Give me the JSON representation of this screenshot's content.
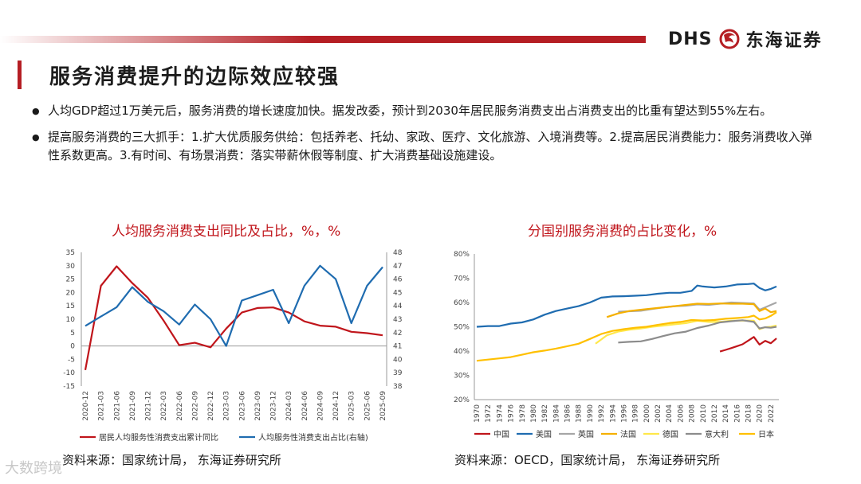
{
  "header": {
    "logo_text": "DHS",
    "company": "东海证券"
  },
  "title": "服务消费提升的边际效应较强",
  "bullets": [
    "人均GDP超过1万美元后，服务消费的增长速度加快。据发改委，预计到2030年居民服务消费支出占消费支出的比重有望达到55%左右。",
    "提高服务消费的三大抓手：1.扩大优质服务供给：包括养老、托幼、家政、医疗、文化旅游、入境消费等。2.提高居民消费能力：服务消费收入弹性系数更高。3.有时间、有场景消费：落实带薪休假等制度、扩大消费基础设施建设。"
  ],
  "sources": {
    "left": "资料来源：国家统计局， 东海证券研究所",
    "right": "资料来源：OECD，国家统计局， 东海证券研究所"
  },
  "watermark": "大数跨境",
  "colors": {
    "brand_red": "#b51e24",
    "title_red": "#c0151b"
  },
  "chart_data": [
    {
      "type": "line",
      "title": "人均服务消费支出同比及占比，%，%",
      "categories": [
        "2020-12",
        "2021-03",
        "2021-06",
        "2021-09",
        "2021-12",
        "2022-03",
        "2022-06",
        "2022-09",
        "2022-12",
        "2023-03",
        "2023-06",
        "2023-09",
        "2023-12",
        "2024-03",
        "2024-06",
        "2024-09",
        "2024-12",
        "2025-03",
        "2025-06",
        "2025-09"
      ],
      "left_axis": {
        "min": -15,
        "max": 35,
        "step": 5,
        "ticks": [
          "35",
          "30",
          "25",
          "20",
          "15",
          "10",
          "5",
          "0",
          "-5",
          "-10",
          "-15"
        ]
      },
      "right_axis": {
        "min": 38,
        "max": 48,
        "step": 1,
        "ticks": [
          "48",
          "47",
          "46",
          "45",
          "44",
          "43",
          "42",
          "41",
          "40",
          "39",
          "38"
        ]
      },
      "series": [
        {
          "name": "居民人均服务性消费支出累计同比",
          "axis": "left",
          "color": "#c0151b",
          "values": [
            -9,
            22.5,
            29.8,
            23.5,
            18,
            9.5,
            0.3,
            1.2,
            -0.5,
            6.5,
            12.5,
            14.2,
            14.4,
            12.5,
            9.2,
            7.6,
            7.2,
            5.3,
            4.8,
            4.0
          ]
        },
        {
          "name": "人均服务性消费支出占比(右轴)",
          "axis": "right",
          "color": "#1f6cb0",
          "values": [
            42.5,
            43.2,
            43.9,
            45.4,
            44.3,
            43.6,
            42.6,
            44.1,
            43.0,
            41.0,
            44.4,
            44.8,
            45.2,
            42.7,
            45.5,
            47.0,
            46.0,
            42.7,
            45.5,
            46.9
          ]
        }
      ]
    },
    {
      "type": "line",
      "title": "分国别服务消费的占比变化，%",
      "x_min": 1970,
      "x_max": 2023,
      "x_ticks": [
        "1970",
        "1972",
        "1974",
        "1976",
        "1978",
        "1980",
        "1982",
        "1984",
        "1986",
        "1988",
        "1990",
        "1992",
        "1994",
        "1996",
        "1998",
        "2000",
        "2002",
        "2004",
        "2006",
        "2008",
        "2010",
        "2012",
        "2014",
        "2016",
        "2018",
        "2020",
        "2022"
      ],
      "y_axis": {
        "min": 20,
        "max": 80,
        "step": 10,
        "ticks": [
          "80%",
          "70%",
          "60%",
          "50%",
          "40%",
          "30%",
          "20%"
        ]
      },
      "series": [
        {
          "name": "中国",
          "color": "#c0151b",
          "points": [
            [
              2013,
              39.8
            ],
            [
              2014,
              40.5
            ],
            [
              2015,
              41.2
            ],
            [
              2016,
              42.0
            ],
            [
              2017,
              42.8
            ],
            [
              2018,
              44.3
            ],
            [
              2019,
              45.8
            ],
            [
              2020,
              42.7
            ],
            [
              2021,
              44.2
            ],
            [
              2022,
              43.2
            ],
            [
              2023,
              45.2
            ]
          ]
        },
        {
          "name": "美国",
          "color": "#1f6cb0",
          "points": [
            [
              1970,
              50
            ],
            [
              1972,
              50.3
            ],
            [
              1974,
              50.3
            ],
            [
              1976,
              51.3
            ],
            [
              1978,
              51.8
            ],
            [
              1980,
              53
            ],
            [
              1982,
              55
            ],
            [
              1984,
              56.5
            ],
            [
              1986,
              57.5
            ],
            [
              1988,
              58.5
            ],
            [
              1990,
              60
            ],
            [
              1992,
              62
            ],
            [
              1994,
              62.5
            ],
            [
              1996,
              62.6
            ],
            [
              1998,
              62.8
            ],
            [
              2000,
              63
            ],
            [
              2002,
              63.6
            ],
            [
              2004,
              64
            ],
            [
              2006,
              64
            ],
            [
              2008,
              64.8
            ],
            [
              2009,
              67
            ],
            [
              2010,
              66.6
            ],
            [
              2012,
              66.2
            ],
            [
              2014,
              66.6
            ],
            [
              2016,
              67.4
            ],
            [
              2018,
              67.6
            ],
            [
              2019,
              67.8
            ],
            [
              2020,
              66
            ],
            [
              2021,
              65
            ],
            [
              2022,
              65.6
            ],
            [
              2023,
              66.6
            ]
          ]
        },
        {
          "name": "英国",
          "color": "#a6a6a6",
          "points": [
            [
              1995,
              56.2
            ],
            [
              1997,
              56.4
            ],
            [
              1999,
              56.6
            ],
            [
              2001,
              57.3
            ],
            [
              2003,
              58
            ],
            [
              2005,
              58.5
            ],
            [
              2007,
              58.7
            ],
            [
              2009,
              59.2
            ],
            [
              2011,
              59
            ],
            [
              2013,
              59.5
            ],
            [
              2015,
              60
            ],
            [
              2017,
              59.8
            ],
            [
              2019,
              59.6
            ],
            [
              2020,
              57
            ],
            [
              2021,
              58
            ],
            [
              2022,
              59
            ],
            [
              2023,
              60
            ]
          ]
        },
        {
          "name": "法国",
          "color": "#f5b000",
          "points": [
            [
              1993,
              54
            ],
            [
              1995,
              55.5
            ],
            [
              1997,
              56.5
            ],
            [
              1999,
              57
            ],
            [
              2001,
              57.5
            ],
            [
              2003,
              58
            ],
            [
              2005,
              58.5
            ],
            [
              2007,
              59
            ],
            [
              2009,
              59.5
            ],
            [
              2011,
              59.4
            ],
            [
              2013,
              59.6
            ],
            [
              2015,
              59.5
            ],
            [
              2017,
              59.5
            ],
            [
              2019,
              59.3
            ],
            [
              2020,
              56.5
            ],
            [
              2021,
              57.5
            ],
            [
              2022,
              56
            ],
            [
              2023,
              56.5
            ]
          ]
        },
        {
          "name": "德国",
          "color": "#ffe84a",
          "points": [
            [
              1991,
              43
            ],
            [
              1993,
              46.5
            ],
            [
              1995,
              48
            ],
            [
              1997,
              48.8
            ],
            [
              1999,
              49.3
            ],
            [
              2001,
              50
            ],
            [
              2003,
              50.5
            ],
            [
              2005,
              51
            ],
            [
              2007,
              51.5
            ],
            [
              2009,
              52.5
            ],
            [
              2011,
              52
            ],
            [
              2013,
              52
            ],
            [
              2015,
              52.5
            ],
            [
              2017,
              52.6
            ],
            [
              2019,
              52.5
            ],
            [
              2020,
              49
            ],
            [
              2021,
              49.8
            ],
            [
              2022,
              50
            ],
            [
              2023,
              50.5
            ]
          ]
        },
        {
          "name": "意大利",
          "color": "#8c8c8c",
          "points": [
            [
              1995,
              43.5
            ],
            [
              1997,
              43.8
            ],
            [
              1999,
              44
            ],
            [
              2001,
              45
            ],
            [
              2003,
              46.2
            ],
            [
              2005,
              47.3
            ],
            [
              2007,
              48
            ],
            [
              2009,
              49.5
            ],
            [
              2011,
              50.5
            ],
            [
              2013,
              51.8
            ],
            [
              2015,
              52.3
            ],
            [
              2017,
              52.7
            ],
            [
              2019,
              52
            ],
            [
              2020,
              49.3
            ],
            [
              2021,
              49.8
            ],
            [
              2022,
              49.6
            ],
            [
              2023,
              50
            ]
          ]
        },
        {
          "name": "日本",
          "color": "#ffc000",
          "points": [
            [
              1970,
              36
            ],
            [
              1972,
              36.5
            ],
            [
              1974,
              37
            ],
            [
              1976,
              37.5
            ],
            [
              1978,
              38.5
            ],
            [
              1980,
              39.5
            ],
            [
              1982,
              40.2
            ],
            [
              1984,
              41
            ],
            [
              1986,
              42
            ],
            [
              1988,
              43
            ],
            [
              1990,
              45
            ],
            [
              1992,
              47
            ],
            [
              1994,
              48.3
            ],
            [
              1996,
              49
            ],
            [
              1998,
              49.6
            ],
            [
              2000,
              50
            ],
            [
              2002,
              50.8
            ],
            [
              2004,
              51.5
            ],
            [
              2006,
              52
            ],
            [
              2008,
              52.8
            ],
            [
              2010,
              52.6
            ],
            [
              2012,
              52.8
            ],
            [
              2014,
              53.3
            ],
            [
              2016,
              53.6
            ],
            [
              2018,
              54
            ],
            [
              2019,
              54.6
            ],
            [
              2020,
              53
            ],
            [
              2021,
              53.4
            ],
            [
              2022,
              54.5
            ],
            [
              2023,
              56
            ]
          ]
        }
      ]
    }
  ]
}
